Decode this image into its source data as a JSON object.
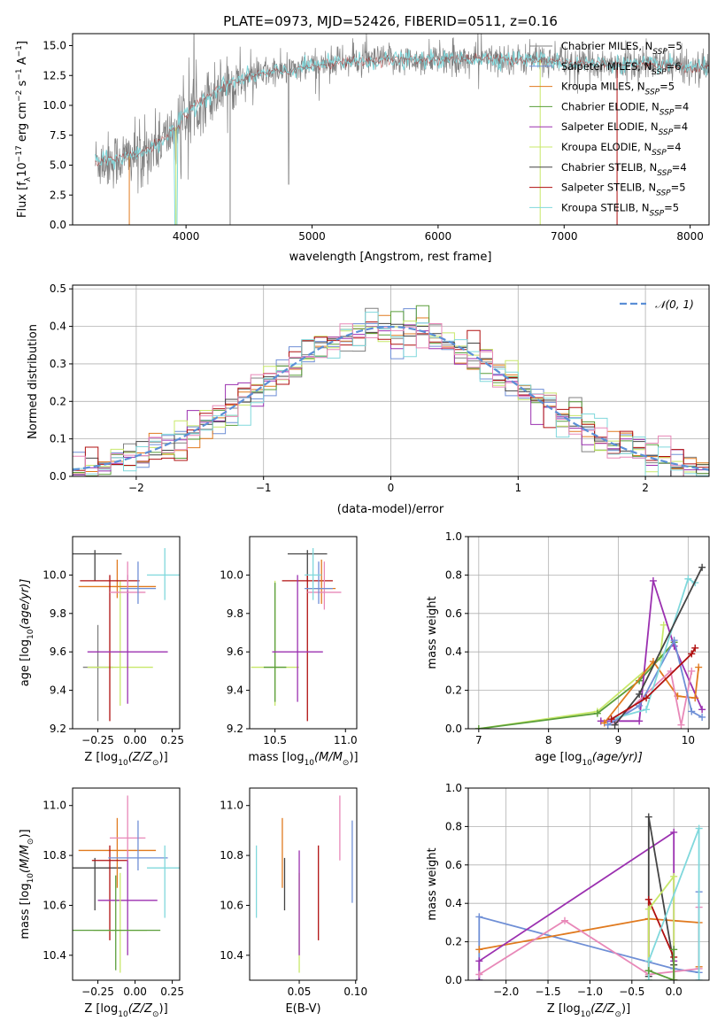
{
  "colors": {
    "chabrier_miles": "#808080",
    "salpeter_miles": "#6f8fd6",
    "kroupa_miles": "#e07a1f",
    "chabrier_elodie": "#5a9e3a",
    "salpeter_elodie": "#9b30b0",
    "kroupa_elodie": "#c8e86a",
    "chabrier_stelib": "#444444",
    "salpeter_stelib": "#b01010",
    "kroupa_stelib": "#80d8dc",
    "pink": "#e888b8",
    "normal_dash": "#5b8fd6"
  },
  "chart_data": [
    {
      "id": "spectrum",
      "type": "line",
      "title": "PLATE=0973, MJD=52426, FIBERID=0511, z=0.16",
      "xlabel": "wavelength [Angstrom, rest frame]",
      "ylabel": "Flux [f$_\\lambda$10$^{-17}$ erg cm$^{-2}$ s$^{-1}$ A$^{-1}$]",
      "xlim": [
        3100,
        8150
      ],
      "ylim": [
        0,
        16
      ],
      "xticks": [
        "4000",
        "5000",
        "6000",
        "7000",
        "8000"
      ],
      "yticks": [
        "0.0",
        "2.5",
        "5.0",
        "7.5",
        "10.0",
        "12.5",
        "15.0"
      ],
      "legend_position": "right",
      "continuum": {
        "x": [
          3280,
          3400,
          3500,
          3600,
          3700,
          3800,
          3900,
          4000,
          4100,
          4200,
          4300,
          4400,
          4600,
          4800,
          5000,
          5200,
          5400,
          5600,
          5800,
          6000,
          6200,
          6400,
          6600,
          6800,
          7000,
          7200,
          7400,
          7600,
          7800,
          8000,
          8150
        ],
        "y": [
          5.3,
          5.4,
          5.6,
          5.9,
          6.3,
          7.0,
          7.9,
          9.2,
          10.2,
          11.0,
          11.6,
          12.1,
          12.6,
          12.9,
          13.3,
          13.6,
          13.7,
          13.8,
          13.8,
          13.8,
          13.9,
          13.9,
          13.9,
          13.8,
          13.6,
          13.5,
          13.5,
          13.4,
          13.4,
          13.2,
          13.1
        ]
      },
      "legend": [
        {
          "label": "Chabrier MILES, N",
          "sub": "SSP",
          "tail": "=5",
          "color": "#808080"
        },
        {
          "label": "Salpeter MILES, N",
          "sub": "SSP",
          "tail": "=6",
          "color": "#6f8fd6"
        },
        {
          "label": "Kroupa MILES, N",
          "sub": "SSP",
          "tail": "=5",
          "color": "#e07a1f"
        },
        {
          "label": "Chabrier ELODIE, N",
          "sub": "SSP",
          "tail": "=4",
          "color": "#5a9e3a"
        },
        {
          "label": "Salpeter ELODIE, N",
          "sub": "SSP",
          "tail": "=4",
          "color": "#9b30b0"
        },
        {
          "label": "Kroupa ELODIE, N",
          "sub": "SSP",
          "tail": "=4",
          "color": "#c8e86a"
        },
        {
          "label": "Chabrier STELIB, N",
          "sub": "SSP",
          "tail": "=4",
          "color": "#444444"
        },
        {
          "label": "Salpeter STELIB, N",
          "sub": "SSP",
          "tail": "=5",
          "color": "#b01010"
        },
        {
          "label": "Kroupa STELIB, N",
          "sub": "SSP",
          "tail": "=5",
          "color": "#80d8dc"
        }
      ]
    },
    {
      "id": "residuals",
      "type": "line",
      "xlabel": "(data-model)/error",
      "ylabel": "Normed distribution",
      "xlim": [
        -2.5,
        2.5
      ],
      "ylim": [
        0,
        0.51
      ],
      "xticks": [
        "−2",
        "−1",
        "0",
        "1",
        "2"
      ],
      "yticks": [
        "0.0",
        "0.1",
        "0.2",
        "0.3",
        "0.4",
        "0.5"
      ],
      "grid": true,
      "legend": [
        {
          "label": "𝒩(0, 1)",
          "color": "#5b8fd6"
        }
      ],
      "legend_position": "top-right",
      "bin_width": 0.1
    },
    {
      "id": "age_vs_Z",
      "type": "scatter",
      "xlabel": "Z [log",
      "xlabel_sub": "10",
      "xlabel_tail": "(Z/Z",
      "xlabel_end": ")]",
      "ylabel": "age  [log",
      "ylabel_sub": "10",
      "ylabel_tail": "(age/yr)]",
      "xlim": [
        -0.42,
        0.3
      ],
      "ylim": [
        9.2,
        10.2
      ],
      "xticks": [
        "−0.25",
        "0.00",
        "0.25"
      ],
      "yticks": [
        "9.2",
        "9.4",
        "9.6",
        "9.8",
        "10.0"
      ],
      "points": [
        {
          "x": -0.27,
          "y": 10.11,
          "xerr": 0.18,
          "ylo": 9.97,
          "yhi": 10.13,
          "color": "#444444"
        },
        {
          "x": -0.25,
          "y": 9.52,
          "xerr": 0.1,
          "ylo": 9.24,
          "yhi": 9.74,
          "color": "#808080"
        },
        {
          "x": -0.1,
          "y": 9.52,
          "xerr": 0.22,
          "ylo": 9.32,
          "yhi": 9.97,
          "color": "#c8e86a"
        },
        {
          "x": -0.12,
          "y": 9.94,
          "xerr": 0.26,
          "ylo": 9.88,
          "yhi": 10.08,
          "color": "#e07a1f"
        },
        {
          "x": -0.17,
          "y": 9.97,
          "xerr": 0.2,
          "ylo": 9.24,
          "yhi": 10.0,
          "color": "#b01010"
        },
        {
          "x": -0.05,
          "y": 9.6,
          "xerr": 0.27,
          "ylo": 9.33,
          "yhi": 10.0,
          "color": "#9b30b0"
        },
        {
          "x": -0.05,
          "y": 9.91,
          "xerr": 0.12,
          "ylo": 9.92,
          "yhi": 10.07,
          "color": "#e888b8"
        },
        {
          "x": 0.02,
          "y": 9.93,
          "xerr": 0.12,
          "ylo": 9.85,
          "yhi": 10.07,
          "color": "#6f8fd6"
        },
        {
          "x": 0.2,
          "y": 10.0,
          "xerr": 0.12,
          "ylo": 9.87,
          "yhi": 10.14,
          "color": "#80d8dc"
        }
      ]
    },
    {
      "id": "age_vs_mass",
      "type": "scatter",
      "xlabel": "mass [log",
      "xlabel_sub": "10",
      "xlabel_tail": "(M/M",
      "xlabel_end": ")]",
      "xlim": [
        10.32,
        11.08
      ],
      "ylim": [
        9.2,
        10.2
      ],
      "xticks": [
        "10.5",
        "11.0"
      ],
      "yticks": [
        "9.2",
        "9.4",
        "9.6",
        "9.8",
        "10.0"
      ],
      "points": [
        {
          "x": 10.73,
          "y": 10.11,
          "xerr": 0.14,
          "ylo": 9.97,
          "yhi": 10.13,
          "color": "#444444"
        },
        {
          "x": 10.5,
          "y": 9.52,
          "xerr": 0.17,
          "ylo": 9.32,
          "yhi": 9.97,
          "color": "#c8e86a"
        },
        {
          "x": 10.5,
          "y": 9.52,
          "xerr": 0.08,
          "ylo": 9.34,
          "yhi": 9.96,
          "color": "#5a9e3a"
        },
        {
          "x": 10.73,
          "y": 9.97,
          "xerr": 0.18,
          "ylo": 9.24,
          "yhi": 10.0,
          "color": "#b01010"
        },
        {
          "x": 10.66,
          "y": 9.6,
          "xerr": 0.18,
          "ylo": 9.34,
          "yhi": 10.0,
          "color": "#9b30b0"
        },
        {
          "x": 10.83,
          "y": 9.93,
          "xerr": 0.1,
          "ylo": 9.85,
          "yhi": 10.08,
          "color": "#e07a1f"
        },
        {
          "x": 10.85,
          "y": 9.91,
          "xerr": 0.12,
          "ylo": 9.82,
          "yhi": 10.07,
          "color": "#e888b8"
        },
        {
          "x": 10.81,
          "y": 9.93,
          "xerr": 0.1,
          "ylo": 9.85,
          "yhi": 10.07,
          "color": "#6f8fd6"
        },
        {
          "x": 10.77,
          "y": 10.0,
          "xerr": 0.06,
          "ylo": 9.87,
          "yhi": 10.14,
          "color": "#80d8dc"
        }
      ]
    },
    {
      "id": "weight_vs_age",
      "type": "line",
      "xlabel": "age  [log",
      "xlabel_sub": "10",
      "xlabel_tail": "(age/yr)]",
      "ylabel": "mass weight",
      "xlim": [
        6.85,
        10.3
      ],
      "ylim": [
        0,
        1
      ],
      "xticks": [
        "7",
        "8",
        "9",
        "10"
      ],
      "yticks": [
        "0.0",
        "0.2",
        "0.4",
        "0.6",
        "0.8",
        "1.0"
      ],
      "grid": true,
      "series": [
        {
          "color": "#c8e86a",
          "x": [
            7.0,
            8.7,
            9.6,
            9.65
          ],
          "y": [
            0.0,
            0.09,
            0.37,
            0.54
          ]
        },
        {
          "color": "#5a9e3a",
          "x": [
            7.0,
            8.7,
            9.3,
            9.8
          ],
          "y": [
            0.0,
            0.08,
            0.25,
            0.45
          ]
        },
        {
          "color": "#9b30b0",
          "x": [
            8.75,
            9.3,
            9.5,
            9.8,
            10.2
          ],
          "y": [
            0.04,
            0.04,
            0.77,
            0.43,
            0.1
          ]
        },
        {
          "color": "#e07a1f",
          "x": [
            8.8,
            9.5,
            9.85,
            10.1,
            10.15
          ],
          "y": [
            0.03,
            0.35,
            0.17,
            0.16,
            0.32
          ]
        },
        {
          "color": "#e888b8",
          "x": [
            8.95,
            9.75,
            9.9,
            10.05
          ],
          "y": [
            0.03,
            0.3,
            0.02,
            0.3
          ]
        },
        {
          "color": "#6f8fd6",
          "x": [
            8.85,
            9.3,
            9.8,
            10.05,
            10.2
          ],
          "y": [
            0.02,
            0.12,
            0.46,
            0.09,
            0.06
          ]
        },
        {
          "color": "#80d8dc",
          "x": [
            8.9,
            9.4,
            10.0,
            10.1
          ],
          "y": [
            0.05,
            0.1,
            0.78,
            0.76
          ]
        },
        {
          "color": "#444444",
          "x": [
            8.95,
            9.3,
            10.2
          ],
          "y": [
            0.02,
            0.18,
            0.84
          ]
        },
        {
          "color": "#b01010",
          "x": [
            8.9,
            9.4,
            10.05,
            10.1
          ],
          "y": [
            0.05,
            0.16,
            0.39,
            0.42
          ]
        }
      ]
    },
    {
      "id": "mass_vs_Z",
      "type": "scatter",
      "xlabel": "Z [log",
      "xlabel_sub": "10",
      "xlabel_tail": "(Z/Z",
      "xlabel_end": ")]",
      "ylabel": "mass [log",
      "ylabel_sub": "10",
      "ylabel_tail": "(M/M",
      "ylabel_end": ")]",
      "xlim": [
        -0.42,
        0.3
      ],
      "ylim": [
        10.3,
        11.07
      ],
      "xticks": [
        "−0.25",
        "0.00",
        "0.25"
      ],
      "yticks": [
        "10.4",
        "10.6",
        "10.8",
        "11.0"
      ],
      "points": [
        {
          "x": -0.27,
          "y": 10.75,
          "xerr": 0.18,
          "ylo": 10.58,
          "yhi": 10.79,
          "color": "#444444"
        },
        {
          "x": -0.12,
          "y": 10.82,
          "xerr": 0.26,
          "ylo": 10.67,
          "yhi": 10.95,
          "color": "#e07a1f"
        },
        {
          "x": -0.17,
          "y": 10.78,
          "xerr": 0.12,
          "ylo": 10.46,
          "yhi": 10.84,
          "color": "#b01010"
        },
        {
          "x": -0.05,
          "y": 10.62,
          "xerr": 0.2,
          "ylo": 10.4,
          "yhi": 10.82,
          "color": "#9b30b0"
        },
        {
          "x": -0.05,
          "y": 10.87,
          "xerr": 0.12,
          "ylo": 10.78,
          "yhi": 11.04,
          "color": "#e888b8"
        },
        {
          "x": 0.02,
          "y": 10.79,
          "xerr": 0.2,
          "ylo": 10.74,
          "yhi": 10.94,
          "color": "#6f8fd6"
        },
        {
          "x": -0.1,
          "y": 10.5,
          "xerr": 0.18,
          "ylo": 10.33,
          "yhi": 10.73,
          "color": "#c8e86a"
        },
        {
          "x": -0.13,
          "y": 10.5,
          "xerr": 0.3,
          "ylo": 10.34,
          "yhi": 10.72,
          "color": "#5a9e3a"
        },
        {
          "x": 0.2,
          "y": 10.75,
          "xerr": 0.12,
          "ylo": 10.55,
          "yhi": 10.84,
          "color": "#80d8dc"
        }
      ]
    },
    {
      "id": "mass_vs_ebv",
      "type": "scatter",
      "xlabel": "E(B-V)",
      "xlim": [
        0.006,
        0.101
      ],
      "ylim": [
        10.3,
        11.07
      ],
      "xticks": [
        "0.05",
        "0.10"
      ],
      "yticks": [
        "10.4",
        "10.6",
        "10.8",
        "11.0"
      ],
      "points": [
        {
          "x": 0.012,
          "y": 10.75,
          "ylo": 10.55,
          "yhi": 10.84,
          "color": "#80d8dc"
        },
        {
          "x": 0.035,
          "y": 10.82,
          "ylo": 10.67,
          "yhi": 10.95,
          "color": "#e07a1f"
        },
        {
          "x": 0.037,
          "y": 10.75,
          "ylo": 10.58,
          "yhi": 10.79,
          "color": "#444444"
        },
        {
          "x": 0.05,
          "y": 10.5,
          "ylo": 10.33,
          "yhi": 10.73,
          "color": "#c8e86a"
        },
        {
          "x": 0.05,
          "y": 10.62,
          "ylo": 10.4,
          "yhi": 10.82,
          "color": "#9b30b0"
        },
        {
          "x": 0.067,
          "y": 10.78,
          "ylo": 10.46,
          "yhi": 10.84,
          "color": "#b01010"
        },
        {
          "x": 0.086,
          "y": 10.87,
          "ylo": 10.78,
          "yhi": 11.04,
          "color": "#e888b8"
        },
        {
          "x": 0.097,
          "y": 10.79,
          "ylo": 10.61,
          "yhi": 10.94,
          "color": "#6f8fd6"
        }
      ]
    },
    {
      "id": "weight_vs_Z",
      "type": "line",
      "xlabel": "Z [log",
      "xlabel_sub": "10",
      "xlabel_tail": "(Z/Z",
      "xlabel_end": ")]",
      "ylabel": "mass weight",
      "xlim": [
        -2.45,
        0.42
      ],
      "ylim": [
        0,
        1
      ],
      "xticks": [
        "−2.0",
        "−1.5",
        "−1.0",
        "−0.5",
        "0.0"
      ],
      "yticks": [
        "0.0",
        "0.2",
        "0.4",
        "0.6",
        "0.8",
        "1.0"
      ],
      "grid": true,
      "series": [
        {
          "color": "#6f8fd6",
          "x": [
            -2.32,
            -2.32,
            0.0,
            0.3,
            0.3
          ],
          "y": [
            0.0,
            0.33,
            0.06,
            0.04,
            0.46
          ]
        },
        {
          "color": "#e07a1f",
          "x": [
            -2.32,
            -0.3,
            0.3,
            0.3
          ],
          "y": [
            0.16,
            0.32,
            0.3,
            0.07
          ]
        },
        {
          "color": "#9b30b0",
          "x": [
            -2.32,
            -2.32,
            0.0,
            0.0,
            0.0
          ],
          "y": [
            0.0,
            0.1,
            0.77,
            0.1,
            0.0
          ]
        },
        {
          "color": "#e888b8",
          "x": [
            -2.32,
            -1.3,
            -0.3,
            0.3,
            0.3
          ],
          "y": [
            0.03,
            0.31,
            0.03,
            0.06,
            0.38
          ]
        },
        {
          "color": "#444444",
          "x": [
            -0.3,
            -0.3,
            0.0,
            0.0
          ],
          "y": [
            0.02,
            0.85,
            0.08,
            0.0
          ]
        },
        {
          "color": "#b01010",
          "x": [
            -0.3,
            -0.3,
            0.0,
            0.0
          ],
          "y": [
            0.05,
            0.42,
            0.12,
            0.0
          ]
        },
        {
          "color": "#c8e86a",
          "x": [
            -0.3,
            -0.3,
            0.0,
            0.0
          ],
          "y": [
            0.0,
            0.37,
            0.54,
            0.0
          ]
        },
        {
          "color": "#80d8dc",
          "x": [
            -0.3,
            -0.3,
            0.3,
            0.3
          ],
          "y": [
            0.0,
            0.1,
            0.79,
            0.0
          ]
        },
        {
          "color": "#5a9e3a",
          "x": [
            -0.3,
            0.0,
            0.0
          ],
          "y": [
            0.05,
            0.0,
            0.16
          ]
        }
      ]
    }
  ]
}
